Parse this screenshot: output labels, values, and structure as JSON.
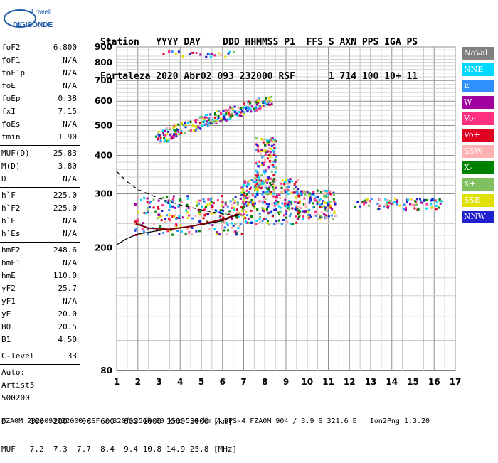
{
  "logo": {
    "top": "Lowell",
    "bottom": "DIGISONDE"
  },
  "header": {
    "line1": "Station   YYYY DAY    DDD HHMMSS P1  FFS S AXN PPS IGA PS",
    "line2": "Fortaleza 2020 Abr02 093 232000 RSF      1 714 100 10+ 11"
  },
  "params": [
    {
      "label": "foF2",
      "value": "6.800"
    },
    {
      "label": "foF1",
      "value": "N/A"
    },
    {
      "label": "foF1p",
      "value": "N/A"
    },
    {
      "label": "foE",
      "value": "N/A"
    },
    {
      "label": "foEp",
      "value": "0.38"
    },
    {
      "label": "fxI",
      "value": "7.15"
    },
    {
      "label": "foEs",
      "value": "N/A"
    },
    {
      "label": "fmin",
      "value": "1.90"
    }
  ],
  "params2": [
    {
      "label": "MUF(D)",
      "value": "25.83"
    },
    {
      "label": "M(D)",
      "value": "3.80"
    },
    {
      "label": "D",
      "value": "N/A"
    }
  ],
  "params3": [
    {
      "label": "h`F",
      "value": "225.0"
    },
    {
      "label": "h`F2",
      "value": "225.0"
    },
    {
      "label": "h`E",
      "value": "N/A"
    },
    {
      "label": "h`Es",
      "value": "N/A"
    }
  ],
  "params4": [
    {
      "label": "hmF2",
      "value": "248.6"
    },
    {
      "label": "hmF1",
      "value": "N/A"
    },
    {
      "label": "hmE",
      "value": "110.0"
    },
    {
      "label": "yF2",
      "value": "25.7"
    },
    {
      "label": "yF1",
      "value": "N/A"
    },
    {
      "label": "yE",
      "value": "20.0"
    },
    {
      "label": "B0",
      "value": "20.5"
    },
    {
      "label": "B1",
      "value": "4.50"
    }
  ],
  "clevel": {
    "label": "C-level",
    "value": "33"
  },
  "auto": {
    "line1": "Auto:",
    "line2": "Artist5",
    "line3": "500200"
  },
  "legend": [
    {
      "label": "NoVal",
      "color": "#808080"
    },
    {
      "label": "NNE",
      "color": "#00d8ff"
    },
    {
      "label": "E",
      "color": "#2f8fff"
    },
    {
      "label": "W",
      "color": "#a000a0"
    },
    {
      "label": "Vo-",
      "color": "#ff3080"
    },
    {
      "label": "Vo+",
      "color": "#e00020"
    },
    {
      "label": "SSW",
      "color": "#ffb0b0"
    },
    {
      "label": "X-",
      "color": "#008000"
    },
    {
      "label": "X+",
      "color": "#80c060"
    },
    {
      "label": "SSE",
      "color": "#e0e000"
    },
    {
      "label": "NNW",
      "color": "#2020d0"
    }
  ],
  "bottom": {
    "line1": "D     100  200  400  600  800 1000 1500 3000 [km]",
    "line2": "MUF   7.2  7.3  7.7  8.4  9.4 10.8 14.9 25.8 [MHz]"
  },
  "footer": "FZA0M_2020093232000.RSF / 320fx256h 50 kHz 5.0 km / DPS-4 FZA0M 904 / 3.9 S 321.6 E   Ion2Png 1.3.20",
  "chart_data": {
    "type": "scatter",
    "xlabel": "",
    "ylabel": "",
    "xlim": [
      1,
      17
    ],
    "ylim": [
      80,
      900
    ],
    "y_scale": "log",
    "x_ticks": [
      1,
      2,
      3,
      4,
      5,
      6,
      7,
      8,
      9,
      10,
      11,
      12,
      13,
      14,
      15,
      16,
      17
    ],
    "y_ticks": [
      80,
      200,
      300,
      400,
      500,
      600,
      700,
      800,
      900
    ],
    "trace": [
      [
        1.9,
        240
      ],
      [
        2.5,
        232
      ],
      [
        3.5,
        230
      ],
      [
        4.5,
        235
      ],
      [
        5.5,
        243
      ],
      [
        6.2,
        250
      ],
      [
        6.7,
        258
      ]
    ],
    "profile_solid": [
      [
        1,
        205
      ],
      [
        1.5,
        215
      ],
      [
        2,
        222
      ],
      [
        3,
        228
      ],
      [
        4,
        233
      ],
      [
        5,
        238
      ],
      [
        6,
        245
      ],
      [
        6.8,
        258
      ]
    ],
    "profile_dashed": [
      [
        1,
        355
      ],
      [
        1.5,
        328
      ],
      [
        2,
        310
      ],
      [
        3,
        290
      ],
      [
        4,
        276
      ],
      [
        5,
        266
      ],
      [
        6,
        258
      ],
      [
        6.8,
        254
      ]
    ],
    "clusters": [
      {
        "x": [
          1.8,
          7.0
        ],
        "y": [
          222,
          298
        ]
      },
      {
        "x": [
          6.8,
          9.6
        ],
        "y": [
          240,
          340
        ]
      },
      {
        "x": [
          7.5,
          8.5
        ],
        "y": [
          300,
          460
        ]
      },
      {
        "x": [
          9.4,
          11.3
        ],
        "y": [
          250,
          310
        ]
      },
      {
        "x": [
          12.2,
          16.4
        ],
        "y": [
          268,
          292
        ]
      },
      {
        "x": [
          2.8,
          8.3
        ],
        "y": [
          440,
          620
        ]
      },
      {
        "x": [
          3.0,
          6.5
        ],
        "y": [
          840,
          880
        ]
      }
    ]
  }
}
